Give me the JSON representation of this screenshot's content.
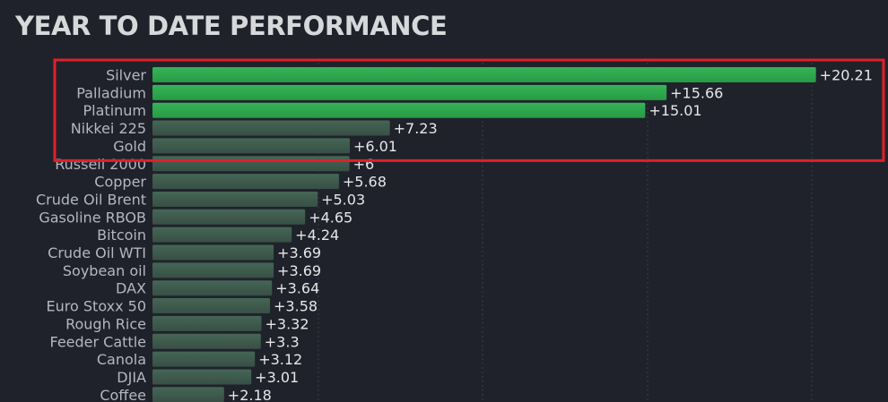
{
  "page": {
    "title": "YEAR TO DATE PERFORMANCE"
  },
  "colors": {
    "background": "#1f222a",
    "title": "#d7d8da",
    "category_label": "#b4b7bf",
    "value_label": "#e6e7e9",
    "bar_top": "#2fa84f",
    "bar_rest": "#3d5a4e",
    "highlight_box": "#e0202a"
  },
  "highlight": {
    "categories": [
      "Silver",
      "Palladium",
      "Platinum",
      "Nikkei 225",
      "Gold"
    ]
  },
  "chart_data": {
    "type": "bar",
    "orientation": "horizontal",
    "title": "YEAR TO DATE PERFORMANCE",
    "xlabel": "",
    "ylabel": "",
    "grid": true,
    "categories": [
      "Silver",
      "Palladium",
      "Platinum",
      "Nikkei 225",
      "Gold",
      "Russell 2000",
      "Copper",
      "Crude Oil Brent",
      "Gasoline RBOB",
      "Bitcoin",
      "Crude Oil WTI",
      "Soybean oil",
      "DAX",
      "Euro Stoxx 50",
      "Rough Rice",
      "Feeder Cattle",
      "Canola",
      "DJIA",
      "Coffee"
    ],
    "values": [
      20.21,
      15.66,
      15.01,
      7.23,
      6.01,
      6,
      5.68,
      5.03,
      4.65,
      4.24,
      3.69,
      3.69,
      3.64,
      3.58,
      3.32,
      3.3,
      3.12,
      3.01,
      2.18
    ],
    "value_labels": [
      "+20.21",
      "+15.66",
      "+15.01",
      "+7.23",
      "+6.01",
      "+6",
      "+5.68",
      "+5.03",
      "+4.65",
      "+4.24",
      "+3.69",
      "+3.69",
      "+3.64",
      "+3.58",
      "+3.32",
      "+3.3",
      "+3.12",
      "+3.01",
      "+2.18"
    ]
  }
}
